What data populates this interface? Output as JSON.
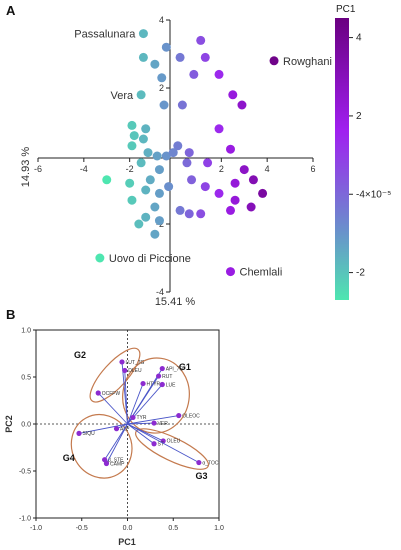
{
  "chart_data": [
    {
      "panel": "A",
      "type": "scatter",
      "title": "",
      "xlabel": "",
      "ylabel": "14.93 %",
      "bottom_label": "15.41 %",
      "xlim": [
        -6,
        6
      ],
      "ylim": [
        -4,
        4
      ],
      "xticks": [
        "-6",
        "-4",
        "-2",
        "2",
        "4",
        "6"
      ],
      "yticks": [
        "4",
        "2",
        "-2",
        "-4"
      ],
      "color_scale": {
        "title": "PC1",
        "min": -2.7,
        "max": 4.5,
        "tick_labels": [
          "4",
          "2",
          "-4×10⁻⁵",
          "-2"
        ],
        "tick_values": [
          4,
          2,
          0,
          -2
        ],
        "colors": [
          "#4ee6b0",
          "#6a8fcc",
          "#a020f0",
          "#6a0080"
        ]
      },
      "points": [
        {
          "x": -1.4,
          "y": 3.6
        },
        {
          "x": -1.4,
          "y": 2.9
        },
        {
          "x": -0.4,
          "y": 3.2
        },
        {
          "x": -0.9,
          "y": 2.7
        },
        {
          "x": -0.6,
          "y": 2.3
        },
        {
          "x": 0.2,
          "y": 2.9
        },
        {
          "x": 1.1,
          "y": 3.4
        },
        {
          "x": 1.3,
          "y": 2.9
        },
        {
          "x": 0.8,
          "y": 2.4
        },
        {
          "x": 1.9,
          "y": 2.4
        },
        {
          "x": 2.5,
          "y": 1.8
        },
        {
          "x": -1.5,
          "y": 1.8
        },
        {
          "x": 0.3,
          "y": 1.5
        },
        {
          "x": -0.5,
          "y": 1.5
        },
        {
          "x": 2.9,
          "y": 1.5
        },
        {
          "x": 1.9,
          "y": 0.8
        },
        {
          "x": -1.9,
          "y": 0.9
        },
        {
          "x": -1.3,
          "y": 0.8
        },
        {
          "x": -1.8,
          "y": 0.6
        },
        {
          "x": -1.4,
          "y": 0.5
        },
        {
          "x": -1.9,
          "y": 0.3
        },
        {
          "x": -1.2,
          "y": 0.1
        },
        {
          "x": -0.8,
          "y": 0.0
        },
        {
          "x": 0.1,
          "y": 0.3
        },
        {
          "x": -0.4,
          "y": 0.0
        },
        {
          "x": -0.1,
          "y": 0.1
        },
        {
          "x": 0.6,
          "y": 0.1
        },
        {
          "x": 2.4,
          "y": 0.2
        },
        {
          "x": 1.4,
          "y": -0.2
        },
        {
          "x": 0.5,
          "y": -0.2
        },
        {
          "x": -1.5,
          "y": -0.2
        },
        {
          "x": -0.7,
          "y": -0.4
        },
        {
          "x": 3.0,
          "y": -0.4
        },
        {
          "x": 0.7,
          "y": -0.7
        },
        {
          "x": 2.6,
          "y": -0.8
        },
        {
          "x": 3.4,
          "y": -0.7
        },
        {
          "x": -3.0,
          "y": -0.7
        },
        {
          "x": -1.1,
          "y": -0.7
        },
        {
          "x": -1.3,
          "y": -1.0
        },
        {
          "x": -0.3,
          "y": -0.9
        },
        {
          "x": 1.3,
          "y": -0.9
        },
        {
          "x": -2.0,
          "y": -0.8
        },
        {
          "x": -0.7,
          "y": -1.1
        },
        {
          "x": 3.8,
          "y": -1.1
        },
        {
          "x": 1.9,
          "y": -1.1
        },
        {
          "x": 2.6,
          "y": -1.3
        },
        {
          "x": -1.9,
          "y": -1.3
        },
        {
          "x": -0.9,
          "y": -1.5
        },
        {
          "x": 3.3,
          "y": -1.5
        },
        {
          "x": 0.2,
          "y": -1.6
        },
        {
          "x": 1.1,
          "y": -1.7
        },
        {
          "x": 0.6,
          "y": -1.7
        },
        {
          "x": -1.3,
          "y": -1.8
        },
        {
          "x": -0.7,
          "y": -1.9
        },
        {
          "x": 2.4,
          "y": -1.6
        },
        {
          "x": -1.6,
          "y": -2.0
        },
        {
          "x": -0.9,
          "y": -2.3
        },
        {
          "x": -3.3,
          "y": -3.0
        },
        {
          "x": 2.4,
          "y": -3.4
        },
        {
          "x": 4.3,
          "y": 2.8
        }
      ],
      "annotations": [
        {
          "text": "Passalunara",
          "x": -1.4,
          "y": 3.6,
          "side": "left"
        },
        {
          "text": "Rowghani",
          "x": 4.3,
          "y": 2.8,
          "side": "right"
        },
        {
          "text": "Vera",
          "x": -1.5,
          "y": 1.8,
          "side": "left"
        },
        {
          "text": "Uovo di Piccione",
          "x": -3.3,
          "y": -3.0,
          "side": "right"
        },
        {
          "text": "Chemlali",
          "x": 2.4,
          "y": -3.4,
          "side": "right"
        }
      ]
    },
    {
      "panel": "B",
      "type": "scatter",
      "title": "",
      "xlabel": "PC1",
      "ylabel": "PC2",
      "xlim": [
        -1.0,
        1.0
      ],
      "ylim": [
        -1.0,
        1.0
      ],
      "grid": false,
      "xticks": [
        "-1.0",
        "-0.5",
        "0.0",
        "0.5",
        "1.0"
      ],
      "yticks": [
        "1.0",
        "0.5",
        "0.0",
        "-0.5",
        "-1.0"
      ],
      "loadings": [
        {
          "label": "LUT_7G",
          "x": -0.06,
          "y": 0.66
        },
        {
          "label": "DLEU",
          "x": -0.03,
          "y": 0.57
        },
        {
          "label": "API_7G",
          "x": 0.38,
          "y": 0.59
        },
        {
          "label": "RUT",
          "x": 0.34,
          "y": 0.51
        },
        {
          "label": "LUE",
          "x": 0.38,
          "y": 0.42
        },
        {
          "label": "HTYR",
          "x": 0.17,
          "y": 0.43
        },
        {
          "label": "OCFFW",
          "x": -0.32,
          "y": 0.33
        },
        {
          "label": "OLEOC",
          "x": 0.56,
          "y": 0.09
        },
        {
          "label": "TYR",
          "x": 0.06,
          "y": 0.07
        },
        {
          "label": "VER",
          "x": 0.29,
          "y": 0.01
        },
        {
          "label": "SIQU",
          "x": -0.53,
          "y": -0.1
        },
        {
          "label": "ALP",
          "x": -0.12,
          "y": -0.05
        },
        {
          "label": "OLEU",
          "x": 0.39,
          "y": -0.18
        },
        {
          "label": "ST",
          "x": 0.29,
          "y": -0.21
        },
        {
          "label": "α_TOC",
          "x": 0.78,
          "y": -0.41
        },
        {
          "label": "β_STE",
          "x": -0.25,
          "y": -0.38
        },
        {
          "label": "CAMP",
          "x": -0.23,
          "y": -0.42
        }
      ],
      "groups": [
        {
          "label": "G1",
          "members": [
            "API_7G",
            "RUT",
            "LUE",
            "HTYR",
            "OLEOC",
            "TYR",
            "VER"
          ]
        },
        {
          "label": "G2",
          "members": [
            "LUT_7G",
            "DLEU",
            "OCFFW"
          ]
        },
        {
          "label": "G3",
          "members": [
            "OLEU",
            "ST",
            "α_TOC"
          ]
        },
        {
          "label": "G4",
          "members": [
            "SIQU",
            "ALP",
            "β_STE",
            "CAMP"
          ]
        }
      ],
      "colors": {
        "vector": "#4a55c8",
        "point": "#8c2bd0",
        "ellipse": "#c47a4e"
      }
    }
  ]
}
